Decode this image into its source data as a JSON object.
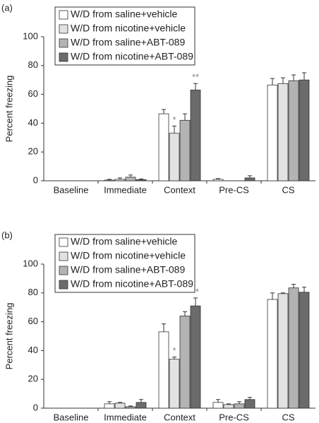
{
  "chart_data": [
    {
      "type": "bar",
      "panel": "(a)",
      "ylabel": "Percent freezing",
      "categories": [
        "Baseline",
        "Immediate",
        "Context",
        "Pre-CS",
        "CS"
      ],
      "ylim": [
        0,
        100
      ],
      "yticks": [
        0,
        20,
        40,
        60,
        80,
        100
      ],
      "legend": "upper left",
      "series": [
        {
          "name": "W/D from saline+vehicle",
          "color": "#ffffff",
          "values": [
            0,
            0.5,
            46.5,
            1,
            66.5
          ],
          "errors": [
            0,
            0.5,
            3,
            0.5,
            4.5
          ],
          "annotations": [
            null,
            null,
            null,
            null,
            null
          ]
        },
        {
          "name": "W/D from nicotine+vehicle",
          "color": "#e2e2e2",
          "values": [
            0,
            1,
            33,
            0,
            67.5
          ],
          "errors": [
            0,
            1,
            5,
            0,
            4
          ],
          "annotations": [
            null,
            null,
            "*",
            null,
            null
          ]
        },
        {
          "name": "W/D from saline+ABT-089",
          "color": "#b3b3b3",
          "values": [
            0,
            2.5,
            42,
            0,
            69.5
          ],
          "errors": [
            0,
            1.5,
            4.5,
            0,
            4
          ],
          "annotations": [
            null,
            null,
            null,
            null,
            null
          ]
        },
        {
          "name": "W/D from nicotine+ABT-089",
          "color": "#6b6b6b",
          "values": [
            0,
            0.8,
            63,
            2,
            70
          ],
          "errors": [
            0,
            0.5,
            4.5,
            1.5,
            5
          ],
          "annotations": [
            null,
            null,
            "**",
            null,
            null
          ]
        }
      ]
    },
    {
      "type": "bar",
      "panel": "(b)",
      "ylabel": "Percent freezing",
      "categories": [
        "Baseline",
        "Immediate",
        "Context",
        "Pre-CS",
        "CS"
      ],
      "ylim": [
        0,
        100
      ],
      "yticks": [
        0,
        20,
        40,
        60,
        80,
        100
      ],
      "legend": "upper left",
      "series": [
        {
          "name": "W/D from saline+vehicle",
          "color": "#ffffff",
          "values": [
            0,
            3,
            53,
            4,
            75.5
          ],
          "errors": [
            0,
            1.5,
            5.5,
            2,
            4.5
          ],
          "annotations": [
            null,
            null,
            null,
            null,
            null
          ]
        },
        {
          "name": "W/D from nicotine+vehicle",
          "color": "#e2e2e2",
          "values": [
            0,
            3.5,
            34,
            2.5,
            79.5
          ],
          "errors": [
            0,
            0.5,
            1.5,
            0.5,
            0.5
          ],
          "annotations": [
            null,
            null,
            "*",
            null,
            null
          ]
        },
        {
          "name": "W/D from saline+ABT-089",
          "color": "#b3b3b3",
          "values": [
            0,
            1,
            64,
            3,
            83.5
          ],
          "errors": [
            0,
            0.5,
            3,
            1.5,
            2.5
          ],
          "annotations": [
            null,
            null,
            null,
            null,
            null
          ]
        },
        {
          "name": "W/D from nicotine+ABT-089",
          "color": "#6b6b6b",
          "values": [
            0,
            4,
            71,
            6,
            80.5
          ],
          "errors": [
            0,
            2,
            5.5,
            1.5,
            3.5
          ],
          "annotations": [
            null,
            null,
            "**",
            null,
            null
          ]
        }
      ]
    }
  ]
}
